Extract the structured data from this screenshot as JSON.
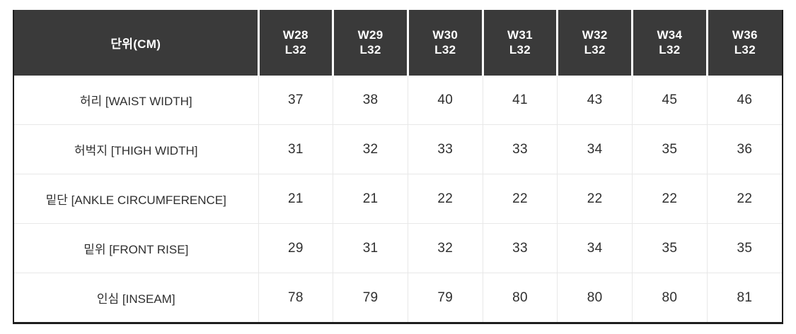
{
  "chart_data": {
    "type": "table",
    "unit_header": "단위(CM)",
    "columns": [
      "W28 L32",
      "W29 L32",
      "W30 L32",
      "W31 L32",
      "W32 L32",
      "W34 L32",
      "W36 L32"
    ],
    "rows": [
      {
        "label": "허리 [WAIST WIDTH]",
        "values": [
          37,
          38,
          40,
          41,
          43,
          45,
          46
        ]
      },
      {
        "label": "허벅지 [THIGH WIDTH]",
        "values": [
          31,
          32,
          33,
          33,
          34,
          35,
          36
        ]
      },
      {
        "label": "밑단 [ANKLE CIRCUMFERENCE]",
        "values": [
          21,
          21,
          22,
          22,
          22,
          22,
          22
        ]
      },
      {
        "label": "밑위 [FRONT RISE]",
        "values": [
          29,
          31,
          32,
          33,
          34,
          35,
          35
        ]
      },
      {
        "label": "인심 [INSEAM]",
        "values": [
          78,
          79,
          79,
          80,
          80,
          80,
          81
        ]
      }
    ]
  },
  "header": {
    "unit_label": "단위(CM)",
    "sizes": [
      {
        "waist": "W28",
        "length": "L32"
      },
      {
        "waist": "W29",
        "length": "L32"
      },
      {
        "waist": "W30",
        "length": "L32"
      },
      {
        "waist": "W31",
        "length": "L32"
      },
      {
        "waist": "W32",
        "length": "L32"
      },
      {
        "waist": "W34",
        "length": "L32"
      },
      {
        "waist": "W36",
        "length": "L32"
      }
    ]
  },
  "colors": {
    "header_bg": "#3a3a3a",
    "header_text": "#ffffff",
    "body_text": "#2f2f2f",
    "grid_line": "#e8e8e8",
    "outer_border": "#1d1d1d",
    "page_bg": "#ffffff"
  }
}
